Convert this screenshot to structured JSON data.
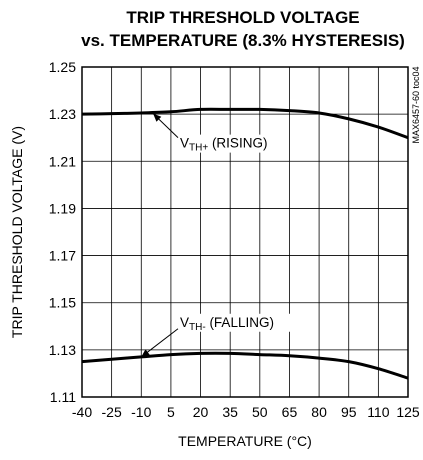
{
  "chart_data": {
    "type": "line",
    "title_line1": "TRIP THRESHOLD VOLTAGE",
    "title_line2": "vs. TEMPERATURE (8.3% HYSTERESIS)",
    "xlabel": "TEMPERATURE (°C)",
    "ylabel": "TRIP THRESHOLD VOLTAGE (V)",
    "xlim": [
      -40,
      125
    ],
    "ylim": [
      1.11,
      1.25
    ],
    "x_ticks": [
      -40,
      -25,
      -10,
      5,
      20,
      35,
      50,
      65,
      80,
      95,
      110,
      125
    ],
    "y_ticks": [
      "1.25",
      "1.23",
      "1.21",
      "1.19",
      "1.17",
      "1.15",
      "1.13",
      "1.11"
    ],
    "grid": true,
    "figure_ref": "MAX6457-60 toc04",
    "series": [
      {
        "name": "VTH+ (RISING)",
        "x": [
          -40,
          -25,
          -10,
          5,
          20,
          35,
          50,
          65,
          80,
          95,
          110,
          125
        ],
        "y": [
          1.23,
          1.2302,
          1.2305,
          1.231,
          1.232,
          1.232,
          1.232,
          1.2315,
          1.2305,
          1.228,
          1.2245,
          1.22
        ]
      },
      {
        "name": "VTH- (FALLING)",
        "x": [
          -40,
          -25,
          -10,
          5,
          20,
          35,
          50,
          65,
          80,
          95,
          110,
          125
        ],
        "y": [
          1.125,
          1.126,
          1.127,
          1.128,
          1.1285,
          1.1285,
          1.128,
          1.1275,
          1.1265,
          1.125,
          1.122,
          1.118
        ]
      }
    ],
    "annotations": [
      {
        "main": "V",
        "sub": "TH+",
        "rest": " (RISING)",
        "series_index": 0
      },
      {
        "main": "V",
        "sub": "TH-",
        "rest": " (FALLING)",
        "series_index": 1
      }
    ]
  }
}
